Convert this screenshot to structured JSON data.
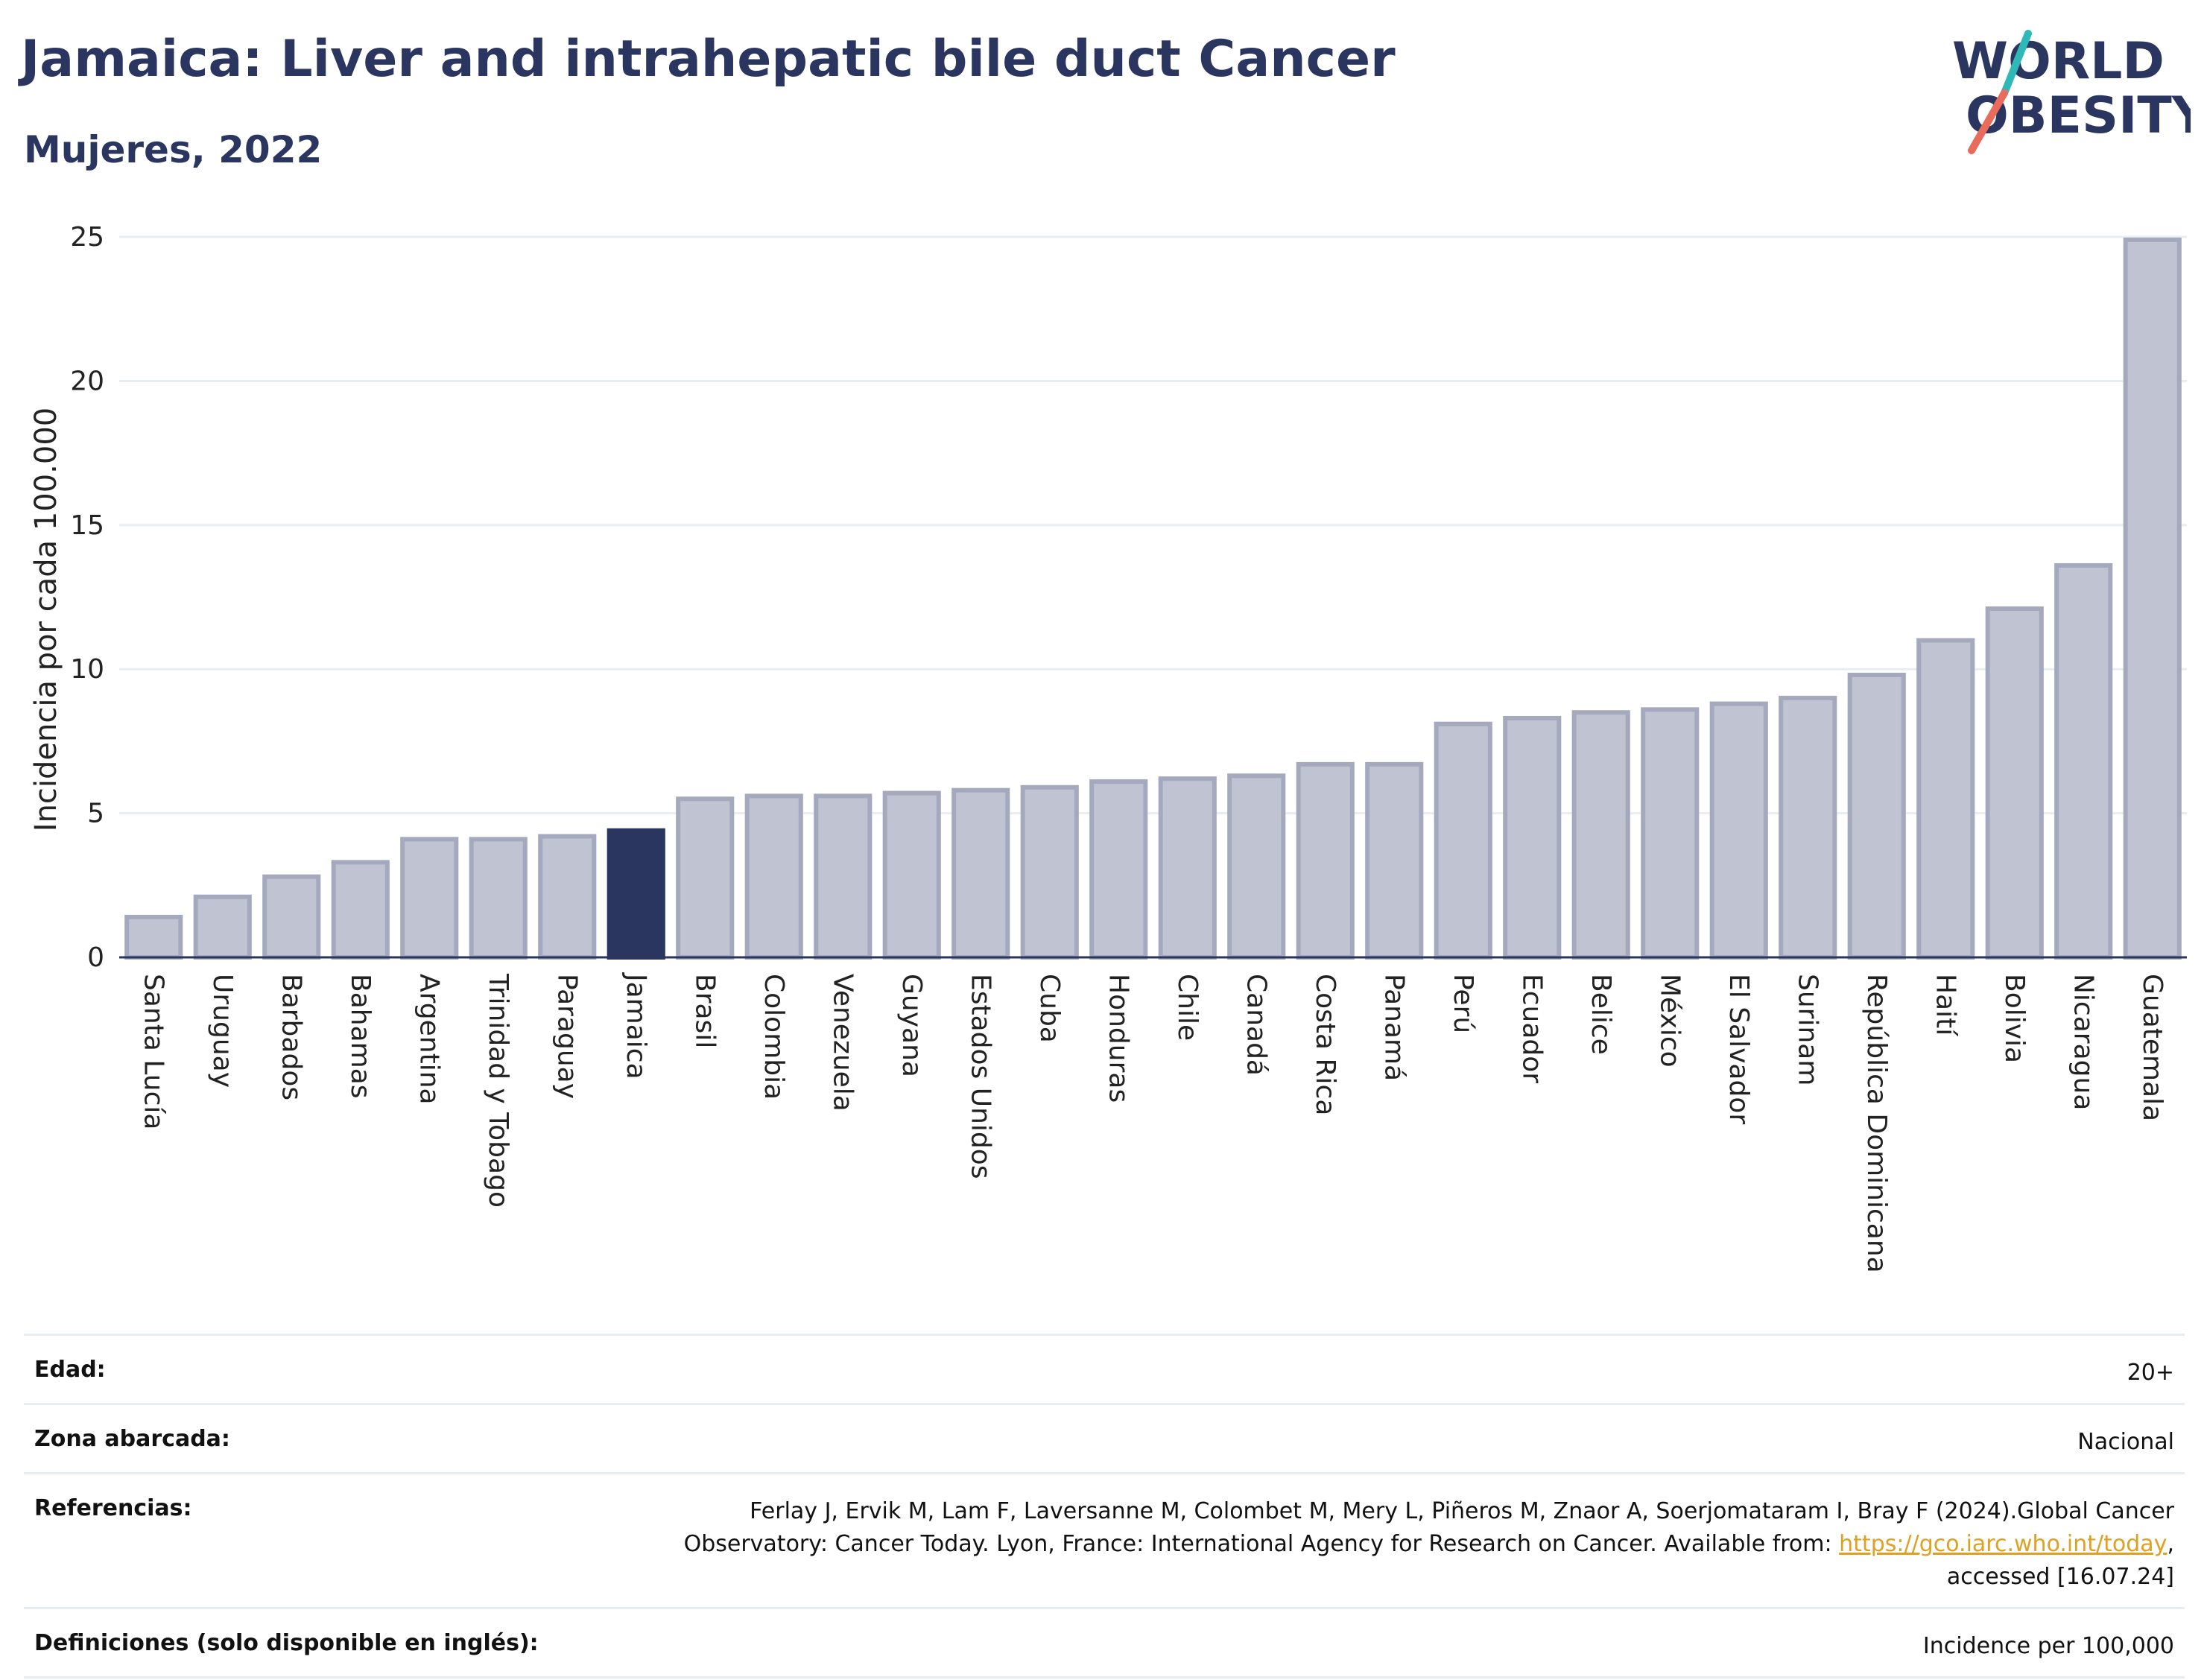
{
  "header": {
    "title": "Jamaica: Liver and intrahepatic bile duct Cancer",
    "subtitle": "Mujeres, 2022"
  },
  "logo": {
    "line1": "WORLD",
    "line2": "OBESITY",
    "colors": {
      "text": "#2b3660",
      "slash_teal": "#2fb8b8",
      "slash_red": "#e96b5b"
    }
  },
  "colors": {
    "bar_default": "#c0c3d1",
    "bar_border": "#a4a9bd",
    "bar_highlight": "#2b3660",
    "grid": "#e8edf2",
    "axis": "#2b3660"
  },
  "chart_data": {
    "type": "bar",
    "title": "Jamaica: Liver and intrahepatic bile duct Cancer",
    "subtitle": "Mujeres, 2022",
    "ylabel": "Incidencia por cada 100.000",
    "ylim": [
      0,
      25
    ],
    "yticks": [
      0,
      5,
      10,
      15,
      20,
      25
    ],
    "grid": true,
    "highlight": "Jamaica",
    "categories": [
      "Santa Lucía",
      "Uruguay",
      "Barbados",
      "Bahamas",
      "Argentina",
      "Trinidad y Tobago",
      "Paraguay",
      "Jamaica",
      "Brasil",
      "Colombia",
      "Venezuela",
      "Guyana",
      "Estados Unidos",
      "Cuba",
      "Honduras",
      "Chile",
      "Canadá",
      "Costa Rica",
      "Panamá",
      "Perú",
      "Ecuador",
      "Belice",
      "México",
      "El Salvador",
      "Surinam",
      "República Dominicana",
      "Haití",
      "Bolivia",
      "Nicaragua",
      "Guatemala"
    ],
    "values": [
      1.4,
      2.1,
      2.8,
      3.3,
      4.1,
      4.1,
      4.2,
      4.4,
      5.5,
      5.6,
      5.6,
      5.7,
      5.8,
      5.9,
      6.1,
      6.2,
      6.3,
      6.7,
      6.7,
      8.1,
      8.3,
      8.5,
      8.6,
      8.8,
      9.0,
      9.8,
      11.0,
      12.1,
      13.6,
      24.9
    ]
  },
  "info": {
    "edad_label": "Edad:",
    "edad_value": "20+",
    "zona_label": "Zona abarcada:",
    "zona_value": "Nacional",
    "ref_label": "Referencias:",
    "ref_text_1": "Ferlay J, Ervik M, Lam F, Laversanne M, Colombet M, Mery L, Piñeros M, Znaor A, Soerjomataram I, Bray F (2024).Global Cancer Observatory: Cancer Today. Lyon, France: International Agency for Research on Cancer. Available from: ",
    "ref_link": "https://gco.iarc.who.int/today",
    "ref_text_2": ", accessed [16.07.24]",
    "def_label": "Definiciones (solo disponible en inglés):",
    "def_value": "Incidence per 100,000"
  }
}
